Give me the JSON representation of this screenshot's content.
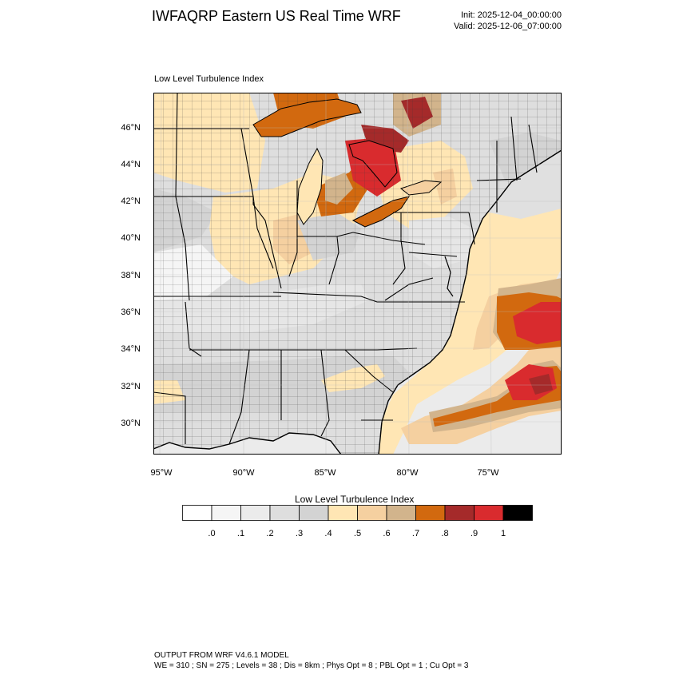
{
  "header": {
    "title": "IWFAQRP Eastern US Real Time WRF",
    "init": "Init: 2025-12-04_00:00:00",
    "valid": "Valid: 2025-12-06_07:00:00"
  },
  "map": {
    "field_title": "Low Level Turbulence Index",
    "lat_labels": [
      "46°N",
      "44°N",
      "42°N",
      "40°N",
      "38°N",
      "36°N",
      "34°N",
      "32°N",
      "30°N"
    ],
    "lon_labels": [
      "95°W",
      "90°W",
      "85°W",
      "80°W",
      "75°W"
    ],
    "colors": {
      "frame": "#000000",
      "land_base": "#e6e6e6",
      "ocean_base": "#ebebeb"
    }
  },
  "colorbar": {
    "title": "Low Level Turbulence Index",
    "labels": [
      ".0",
      ".1",
      ".2",
      ".3",
      ".4",
      ".5",
      ".6",
      ".7",
      ".8",
      ".9",
      "1"
    ],
    "colors": [
      "#ffffff",
      "#f5f5f5",
      "#ebebeb",
      "#dedede",
      "#d3d3d3",
      "#ffe6b4",
      "#f5d0a0",
      "#d2b48c",
      "#d2690f",
      "#a52a2a",
      "#d92b2e",
      "#000000"
    ]
  },
  "footer": {
    "line1": "OUTPUT FROM WRF V4.6.1 MODEL",
    "line2": "WE = 310 ; SN = 275 ; Levels = 38 ; Dis = 8km ; Phys Opt = 8 ; PBL Opt = 1 ; Cu Opt = 3"
  }
}
